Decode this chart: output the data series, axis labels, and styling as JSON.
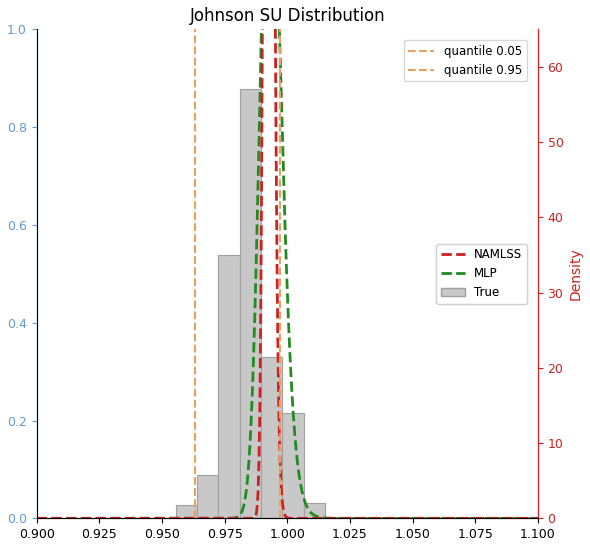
{
  "title": "Johnson SU Distribution",
  "xlim": [
    0.9,
    1.1
  ],
  "ylim_left": [
    0.0,
    1.0
  ],
  "ylim_right": [
    0,
    65
  ],
  "ylabel_right": "Density",
  "quantile_05": 0.963,
  "quantile_95": 0.997,
  "quantile_color": "#E8A060",
  "namlss_color": "#CC2222",
  "mlp_color": "#228B22",
  "true_color": "#C8C8C8",
  "true_edge_color": "#A0A0A0",
  "left_tick_color": "#6699CC",
  "right_tick_color": "#CC2222",
  "namlss_params": {
    "gamma": -5.2,
    "delta": 7.5,
    "xi": 0.9855,
    "lambda": 0.0095
  },
  "mlp_params": {
    "gamma": -2.8,
    "delta": 4.5,
    "xi": 0.983,
    "lambda": 0.016
  },
  "hist_bins_edges": [
    0.9555,
    0.964,
    0.9725,
    0.981,
    0.9895,
    0.998,
    1.0065,
    1.015
  ],
  "hist_heights_density": [
    1.8,
    5.8,
    35.0,
    57.0,
    21.5,
    14.0,
    2.0
  ],
  "left_yticks": [
    0.0,
    0.2,
    0.4,
    0.6,
    0.8,
    1.0
  ],
  "right_yticks": [
    0,
    10,
    20,
    30,
    40,
    50,
    60
  ],
  "xticks": [
    0.9,
    0.925,
    0.95,
    0.975,
    1.0,
    1.025,
    1.05,
    1.075,
    1.1
  ]
}
